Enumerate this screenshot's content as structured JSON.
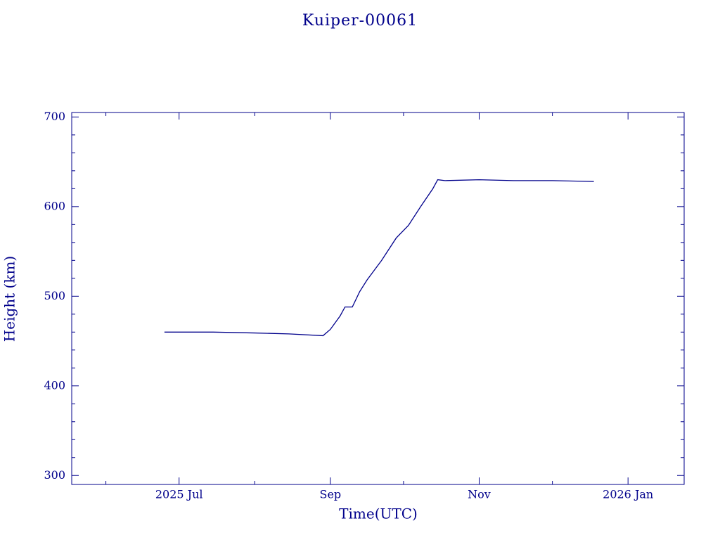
{
  "chart_data": {
    "type": "line",
    "title": "Kuiper-00061",
    "x_label": "Time(UTC)",
    "y_label": "Height (km)",
    "color": "#00008b",
    "x": [
      "2025-06-25",
      "2025-07-01",
      "2025-07-15",
      "2025-08-01",
      "2025-08-15",
      "2025-08-29",
      "2025-09-01",
      "2025-09-05",
      "2025-09-07",
      "2025-09-10",
      "2025-09-13",
      "2025-09-16",
      "2025-09-22",
      "2025-09-28",
      "2025-10-03",
      "2025-10-08",
      "2025-10-13",
      "2025-10-15",
      "2025-10-18",
      "2025-11-01",
      "2025-11-15",
      "2025-12-01",
      "2025-12-18"
    ],
    "values": [
      460,
      460,
      460,
      459,
      458,
      456,
      463,
      478,
      488,
      488,
      505,
      518,
      540,
      565,
      579,
      600,
      620,
      630,
      629,
      630,
      629,
      629,
      628
    ],
    "xlim": [
      "2025-05-18",
      "2026-01-24"
    ],
    "xticks": [
      {
        "value": "2025-07-01",
        "label": "2025 Jul"
      },
      {
        "value": "2025-09-01",
        "label": "Sep"
      },
      {
        "value": "2025-11-01",
        "label": "Nov"
      },
      {
        "value": "2026-01-01",
        "label": "2026 Jan"
      }
    ],
    "xminorticks": [
      "2025-06-01",
      "2025-08-01",
      "2025-10-01",
      "2025-12-01"
    ],
    "ylim": [
      290,
      705
    ],
    "yticks": [
      300,
      400,
      500,
      600,
      700
    ],
    "yminorticks": [
      320,
      340,
      360,
      380,
      420,
      440,
      460,
      480,
      520,
      540,
      560,
      580,
      620,
      640,
      660,
      680
    ]
  }
}
